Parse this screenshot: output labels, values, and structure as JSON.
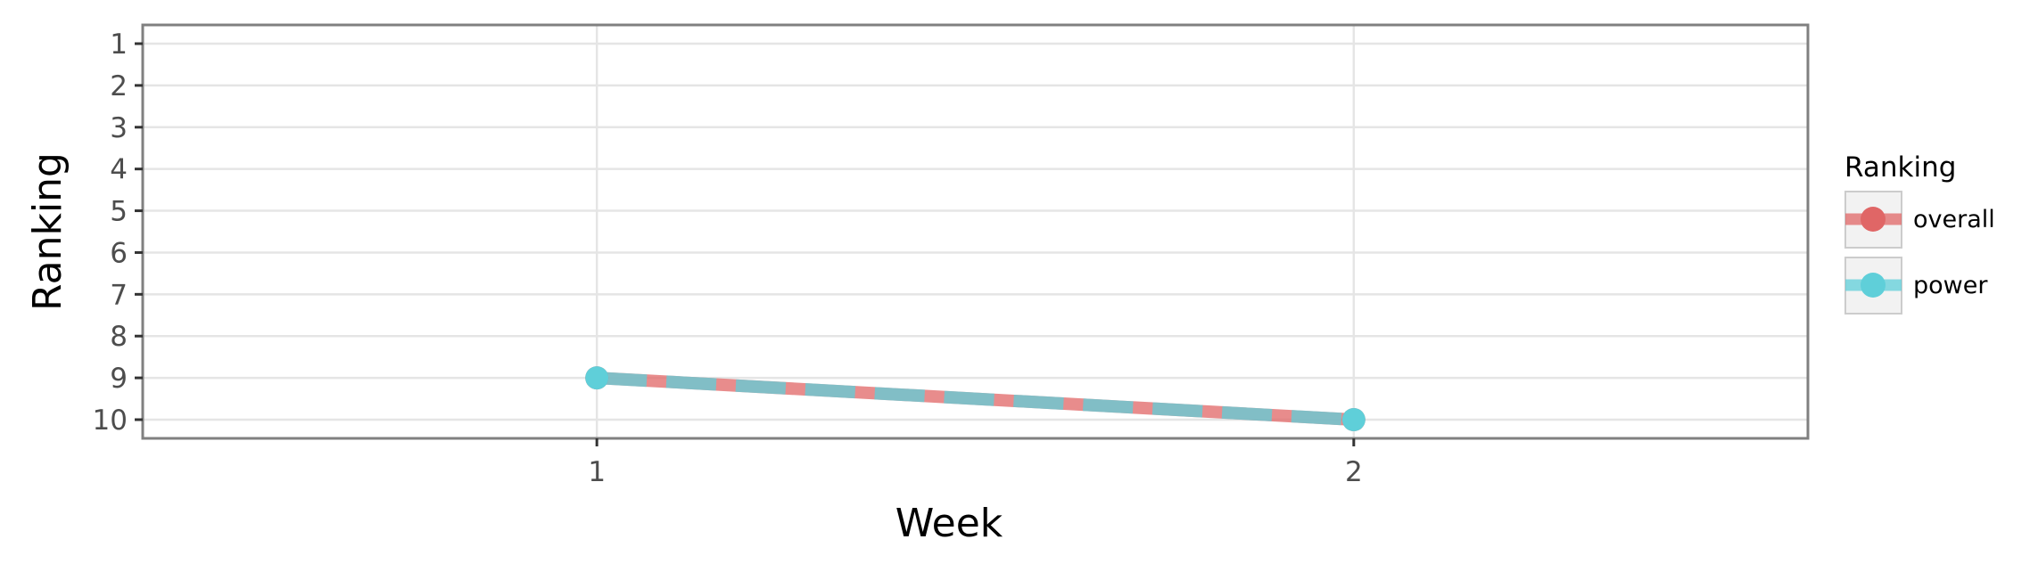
{
  "chart_data": {
    "type": "line",
    "title": "",
    "xlabel": "Week",
    "ylabel": "Ranking",
    "x": [
      1,
      2
    ],
    "x_ticks": [
      "1",
      "2"
    ],
    "y_ticks": [
      "1",
      "2",
      "3",
      "4",
      "5",
      "6",
      "7",
      "8",
      "9",
      "10"
    ],
    "xlim": [
      0.4,
      2.6
    ],
    "ylim": [
      10,
      1
    ],
    "y_reversed": true,
    "grid": true,
    "legend_title": "Ranking",
    "legend_position": "right",
    "series": [
      {
        "name": "overall",
        "values": [
          9,
          10
        ],
        "color": "#e06666",
        "style": "solid"
      },
      {
        "name": "power",
        "values": [
          9,
          10
        ],
        "color": "#5fcfd9",
        "style": "dashed"
      }
    ]
  },
  "colors": {
    "panel_border": "#808080",
    "grid": "#e5e5e5",
    "overall": "#e06666",
    "power": "#5fcfd9"
  }
}
